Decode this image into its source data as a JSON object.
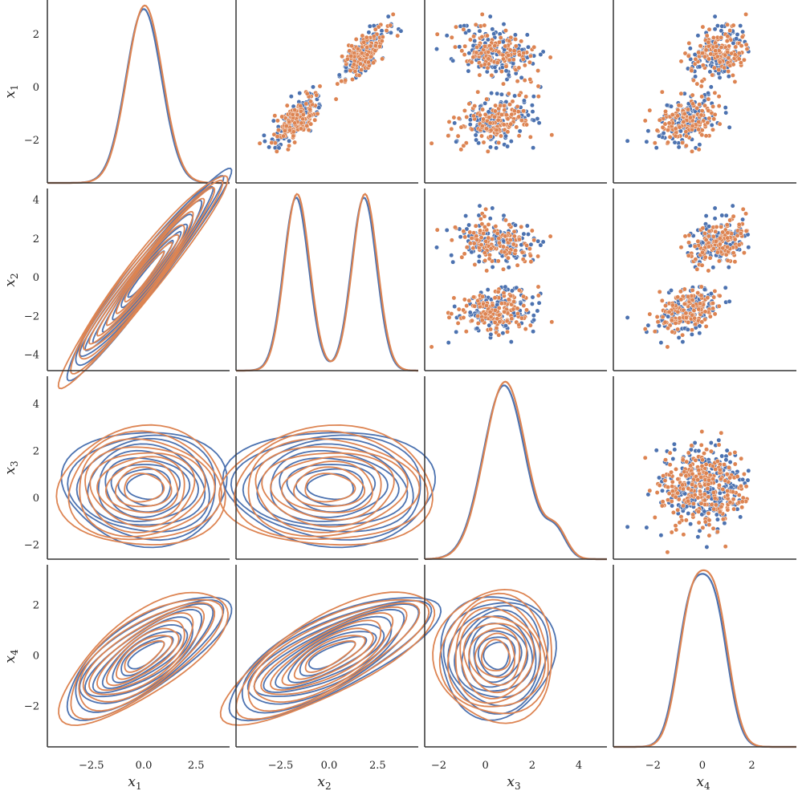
{
  "chart_data": {
    "type": "pairplot",
    "variables": [
      "x1",
      "x2",
      "x3",
      "x4"
    ],
    "axis_labels": [
      {
        "base": "x",
        "sub": "1"
      },
      {
        "base": "x",
        "sub": "2"
      },
      {
        "base": "x",
        "sub": "3"
      },
      {
        "base": "x",
        "sub": "4"
      }
    ],
    "colors": [
      "#4c72b0",
      "#dd8452"
    ],
    "diagonal": "kde",
    "upper": "scatter",
    "lower": "kde-contour",
    "ranges": [
      [
        -4.6,
        4.1
      ],
      [
        -4.8,
        4.6
      ],
      [
        -2.6,
        5.2
      ],
      [
        -3.6,
        3.8
      ]
    ],
    "yranges": [
      [
        -3.6,
        3.3
      ],
      [
        -4.8,
        4.6
      ],
      [
        -2.6,
        5.2
      ],
      [
        -3.6,
        3.6
      ]
    ],
    "ticks": [
      [
        "−2.5",
        "0.0",
        "2.5"
      ],
      [
        "−2.5",
        "0.0",
        "2.5"
      ],
      [
        "−2",
        "0",
        "2",
        "4"
      ],
      [
        "−2",
        "0",
        "2"
      ]
    ],
    "tick_values": [
      [
        -2.5,
        0,
        2.5
      ],
      [
        -2.5,
        0,
        2.5
      ],
      [
        -2,
        0,
        2,
        4
      ],
      [
        -2,
        0,
        2
      ]
    ],
    "ytick_labels": [
      [
        "−2",
        "0",
        "2"
      ],
      [
        "−4",
        "−2",
        "0",
        "2",
        "4"
      ],
      [
        "−2",
        "0",
        "2",
        "4"
      ],
      [
        "−2",
        "0",
        "2"
      ]
    ],
    "ytick_values": [
      [
        -2,
        0,
        2
      ],
      [
        -4,
        -2,
        0,
        2,
        4
      ],
      [
        -2,
        0,
        2,
        4
      ],
      [
        -2,
        0,
        2
      ]
    ],
    "marginals": [
      [
        {
          "m": 0.0,
          "s": 0.85,
          "w": 1
        }
      ],
      [
        {
          "m": -1.7,
          "s": 0.65,
          "w": 0.5
        },
        {
          "m": 1.8,
          "s": 0.65,
          "w": 0.5
        }
      ],
      [
        {
          "m": 0.8,
          "s": 0.9,
          "w": 0.93
        },
        {
          "m": 3.0,
          "s": 0.45,
          "w": 0.07
        }
      ],
      [
        {
          "m": -0.5,
          "s": 0.55,
          "w": 0.5
        },
        {
          "m": 0.5,
          "s": 0.55,
          "w": 0.5
        }
      ]
    ]
  }
}
